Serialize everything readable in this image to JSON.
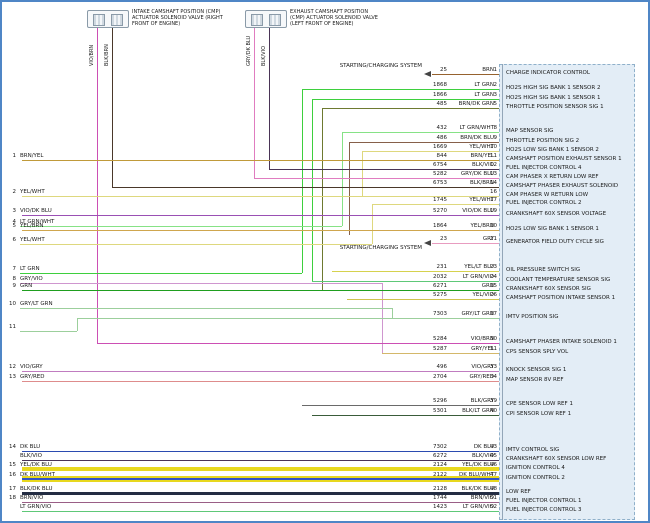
{
  "diagram": {
    "connectors": [
      {
        "label": "INTAKE CAMSHAFT POSITION (CMP) ACTUATOR SOLENOID VALVE (RIGHT FRONT OF ENGINE)",
        "wires": [
          "VIO/BRN",
          "BLK/BRN"
        ]
      },
      {
        "label": "EXHAUST CAMSHAFT POSITION (CMP) ACTUATOR SOLENOID VALVE (LEFT FRONT OF ENGINE)",
        "wires": [
          "GRY/DK BLU",
          "BLK/VIO"
        ]
      }
    ],
    "annotations": [
      "STARTING/CHARGING SYSTEM",
      "STARTING/CHARGING SYSTEM"
    ],
    "left_refs": [
      {
        "n": "1",
        "color": "BRN/YEL"
      },
      {
        "n": "2",
        "color": "YEL/WHT"
      },
      {
        "n": "3",
        "color": "VIO/DK BLU"
      },
      {
        "n": "4",
        "color": "LT GRN/WHT"
      },
      {
        "n": "5",
        "color": "YEL/BRN"
      },
      {
        "n": "6",
        "color": "YEL/WHT"
      },
      {
        "n": "7",
        "color": "LT GRN"
      },
      {
        "n": "8",
        "color": "GRY/VIO"
      },
      {
        "n": "9",
        "color": "GRN"
      },
      {
        "n": "10",
        "color": "GRY/LT GRN"
      },
      {
        "n": "11",
        "color": ""
      },
      {
        "n": "12",
        "color": "VIO/GRY"
      },
      {
        "n": "13",
        "color": "GRY/RED"
      },
      {
        "n": "14",
        "color": "DK BLU"
      },
      {
        "n": "",
        "color": "BLK/VIO"
      },
      {
        "n": "15",
        "color": "YEL/DK BLU"
      },
      {
        "n": "16",
        "color": "DK BLU/WHT"
      },
      {
        "n": "17",
        "color": "BLK/DK BLU"
      },
      {
        "n": "18",
        "color": "BRN/VIO"
      },
      {
        "n": "",
        "color": "LT GRN/VIO"
      }
    ],
    "pcm_rows": [
      {
        "wire": "25",
        "color": "BRN",
        "pin": "1",
        "desc": "CHARGE INDICATOR CONTROL"
      },
      {
        "wire": "1868",
        "color": "LT GRN",
        "pin": "2",
        "desc": "HO2S HIGH SIG BANK 1 SENSOR 2"
      },
      {
        "wire": "1866",
        "color": "LT GRN",
        "pin": "3",
        "desc": "HO2S HIGH SIG BANK 1 SENSOR 1"
      },
      {
        "wire": "485",
        "color": "BRN/DK GRN",
        "pin": "5",
        "desc": "THROTTLE POSITION SENSOR SIG 1"
      },
      {
        "wire": "432",
        "color": "LT GRN/WHT",
        "pin": "8",
        "desc": "MAP SENSOR SIG"
      },
      {
        "wire": "486",
        "color": "BRN/DK BLU",
        "pin": "9",
        "desc": "THROTTLE POSITION SIG 2"
      },
      {
        "wire": "1669",
        "color": "YEL/WHT",
        "pin": "10",
        "desc": "HO2S LOW SIG BANK 1 SENSOR 2"
      },
      {
        "wire": "844",
        "color": "BRN/YEL",
        "pin": "11",
        "desc": "CAMSHAFT POSITION EXHAUST SENSOR 1"
      },
      {
        "wire": "6754",
        "color": "BLK/VIO",
        "pin": "12",
        "desc": "FUEL INJECTOR CONTROL 4"
      },
      {
        "wire": "5282",
        "color": "GRY/DK BLU",
        "pin": "13",
        "desc": "CAM PHASER X RETURN LOW REF"
      },
      {
        "wire": "6753",
        "color": "BLK/BRN",
        "pin": "14",
        "desc": "CAMSHAFT PHASER EXHAUST SOLENOID"
      },
      {
        "wire": "",
        "color": "YEL/WHT",
        "pin": "16",
        "desc": "CAM PHASER W RETURN LOW"
      },
      {
        "wire": "1745",
        "color": "YEL/WHT",
        "pin": "17",
        "desc": "FUEL INJECTOR CONTROL 2"
      },
      {
        "wire": "5270",
        "color": "VIO/DK BLU",
        "pin": "19",
        "desc": "CRANKSHAFT 60X SENSOR VOLTAGE"
      },
      {
        "wire": "1864",
        "color": "YEL/BRN",
        "pin": "20",
        "desc": "HO2S LOW SIG BANK 1 SENSOR 1"
      },
      {
        "wire": "23",
        "color": "GRY",
        "pin": "21",
        "desc": "GENERATOR FIELD DUTY CYCLE SIG"
      },
      {
        "wire": "231",
        "color": "YEL/LT BLU",
        "pin": "23",
        "desc": "OIL PRESSURE SWITCH SIG"
      },
      {
        "wire": "2032",
        "color": "LT GRN/VIO",
        "pin": "24",
        "desc": "COOLANT TEMPERATURE SENSOR SIG"
      },
      {
        "wire": "6271",
        "color": "GRN",
        "pin": "25",
        "desc": "CRANKSHAFT 60X SENSOR SIG"
      },
      {
        "wire": "5275",
        "color": "YEL/VIO",
        "pin": "26",
        "desc": "CAMSHAFT POSITION INTAKE SENSOR 1"
      },
      {
        "wire": "7303",
        "color": "GRY/LT GRN",
        "pin": "27",
        "desc": "IMTV POSITION SIG"
      },
      {
        "wire": "5284",
        "color": "VIO/BRN",
        "pin": "30",
        "desc": "CAMSHAFT PHASER INTAKE SOLENOID 1"
      },
      {
        "wire": "5287",
        "color": "GRY/YEL",
        "pin": "31",
        "desc": "CPS SENSOR SPLY VOL"
      },
      {
        "wire": "496",
        "color": "VIO/GRY",
        "pin": "33",
        "desc": "KNOCK SENSOR SIG 1"
      },
      {
        "wire": "2704",
        "color": "GRY/RED",
        "pin": "34",
        "desc": "MAP SENSOR 8V REF"
      },
      {
        "wire": "5296",
        "color": "BLK/GRY",
        "pin": "39",
        "desc": "CPE SENSOR LOW REF 1"
      },
      {
        "wire": "5301",
        "color": "BLK/LT GRN",
        "pin": "40",
        "desc": "CPI SENSOR LOW REF 1"
      },
      {
        "wire": "7302",
        "color": "DK BLU",
        "pin": "43",
        "desc": "IMTV CONTROL SIG"
      },
      {
        "wire": "6272",
        "color": "BLK/VIO",
        "pin": "45",
        "desc": "CRANKSHAFT 60X SENSOR LOW REF"
      },
      {
        "wire": "2124",
        "color": "YEL/DK BLU",
        "pin": "46",
        "desc": "IGNITION CONTROL 4"
      },
      {
        "wire": "2122",
        "color": "DK BLU/WHT",
        "pin": "47",
        "desc": "IGNITION CONTROL 2"
      },
      {
        "wire": "2128",
        "color": "BLK/DK BLU",
        "pin": "48",
        "desc": "LOW REF"
      },
      {
        "wire": "1744",
        "color": "BRN/VIO",
        "pin": "51",
        "desc": "FUEL INJECTOR CONTROL 1"
      },
      {
        "wire": "1423",
        "color": "LT GRN/VIO",
        "pin": "52",
        "desc": "FUEL INJECTOR CONTROL 3"
      }
    ],
    "wire_colors": {
      "BRN": "#96622e",
      "LT GRN": "#3ecf3e",
      "GRN": "#1f9e1f",
      "GRY": "#e89cc0",
      "VIO/BRN": "#cc4fb4",
      "BLK/BRN": "#4a382a",
      "GRY/DK BLU": "#e07cc0",
      "BLK/VIO": "#4a3456",
      "BRN/YEL": "#c09a3a",
      "YEL/WHT": "#ded87e",
      "BRN/DK GRN": "#6e7a30",
      "LT GRN/WHT": "#86e286",
      "BRN/DK BLU": "#86604a",
      "VIO/DK BLU": "#9a50b4",
      "YEL/BRN": "#cfa64e",
      "YEL/LT BLU": "#d6d24e",
      "LT GRN/VIO": "#5ec878",
      "YEL/VIO": "#cfc34e",
      "GRY/LT GRN": "#9ccf9c",
      "GRY/YEL": "#d4b86a",
      "VIO/GRY": "#c07cc0",
      "GRY/RED": "#de8c8c",
      "BLK/GRY": "#6a6a6a",
      "BLK/LT GRN": "#3a5c3a",
      "DK BLU": "#2b4bb0",
      "YEL/DK BLU": "#e3cf1f",
      "DK BLU/WHT": "#3353c2",
      "BLK/DK BLU": "#232c42",
      "BRN/VIO": "#9a5e86",
      "GRY/VIO": "#cf96cf",
      "highlight": "#e8d81e",
      "pcm_fill": "#e3edf6"
    }
  }
}
